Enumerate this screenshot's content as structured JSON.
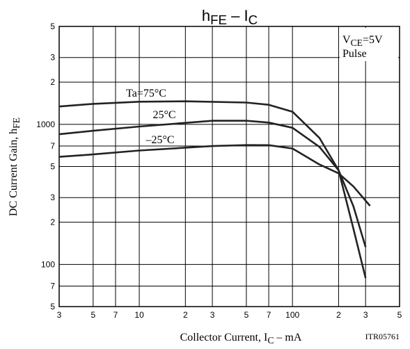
{
  "chart_data": {
    "type": "line",
    "title": [
      {
        "text": "h"
      },
      {
        "text": "FE",
        "sub": true
      },
      {
        "text": " – I"
      },
      {
        "text": "C",
        "sub": true
      }
    ],
    "xlabel": [
      {
        "text": "Collector Current, I"
      },
      {
        "text": "C",
        "sub": true
      },
      {
        "text": " – mA"
      }
    ],
    "ylabel": [
      {
        "text": "DC Current Gain, h"
      },
      {
        "text": "FE",
        "sub": true
      }
    ],
    "annotations": [
      [
        {
          "text": "V"
        },
        {
          "text": "CE",
          "sub": true
        },
        {
          "text": "=5V"
        }
      ],
      [
        {
          "text": "Pulse"
        }
      ]
    ],
    "code": "ITR05761",
    "xlog": true,
    "ylog": true,
    "grid": true,
    "color": "#222222",
    "xlim": [
      3,
      500
    ],
    "ylim": [
      50,
      5000
    ],
    "xticks": [
      3,
      5,
      7,
      10,
      {
        "value": 20,
        "label": "2"
      },
      {
        "value": 30,
        "label": "3"
      },
      {
        "value": 50,
        "label": "5"
      },
      {
        "value": 70,
        "label": "7"
      },
      100,
      {
        "value": 200,
        "label": "2"
      },
      {
        "value": 300,
        "label": "3"
      },
      {
        "value": 500,
        "label": "5"
      }
    ],
    "yticks": [
      {
        "value": 50,
        "label": "5"
      },
      {
        "value": 70,
        "label": "7"
      },
      100,
      {
        "value": 200,
        "label": "2"
      },
      {
        "value": 300,
        "label": "3"
      },
      {
        "value": 500,
        "label": "5"
      },
      {
        "value": 700,
        "label": "7"
      },
      1000,
      {
        "value": 2000,
        "label": "2"
      },
      {
        "value": 3000,
        "label": "3"
      },
      {
        "value": 5000,
        "label": "5"
      }
    ],
    "series": [
      {
        "name": "Ta=75°C",
        "x": [
          3,
          5,
          10,
          20,
          50,
          70,
          100,
          150,
          200,
          250,
          300
        ],
        "values": [
          1340,
          1400,
          1450,
          1460,
          1430,
          1380,
          1230,
          800,
          470,
          180,
          80
        ]
      },
      {
        "name": "25°C",
        "x": [
          3,
          5,
          10,
          30,
          50,
          70,
          100,
          150,
          200,
          250,
          300
        ],
        "values": [
          850,
          900,
          965,
          1060,
          1060,
          1030,
          945,
          690,
          470,
          260,
          133
        ]
      },
      {
        "name": "–25°C",
        "x": [
          3,
          5,
          10,
          30,
          50,
          70,
          100,
          150,
          200,
          250,
          321
        ],
        "values": [
          586,
          610,
          650,
          700,
          711,
          710,
          672,
          517,
          447,
          360,
          262
        ]
      }
    ]
  }
}
